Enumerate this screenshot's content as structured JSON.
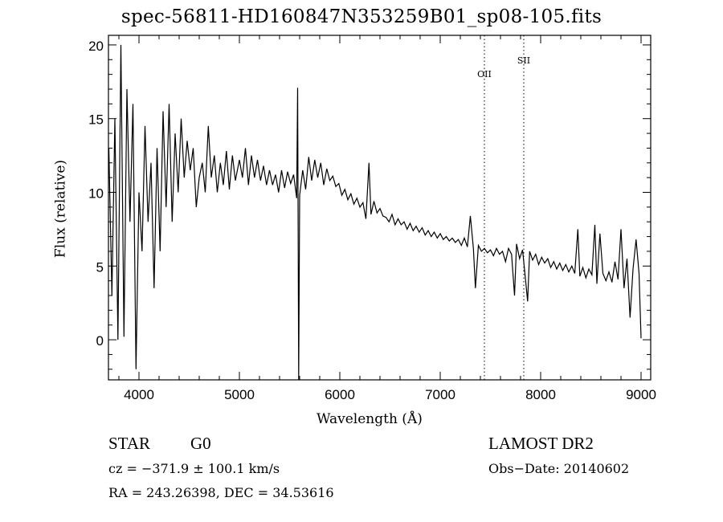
{
  "chart_data": {
    "type": "line",
    "title": "spec-56811-HD160847N353259B01_sp08-105.fits",
    "xlabel": "Wavelength (Å)",
    "ylabel": "Flux (relative)",
    "xlim": [
      3696,
      9096
    ],
    "ylim": [
      -2.72,
      20.65
    ],
    "x_ticks": [
      4000,
      5000,
      6000,
      7000,
      8000,
      9000
    ],
    "x_tick_labels": [
      "4000",
      "5000",
      "6000",
      "7000",
      "8000",
      "9000"
    ],
    "y_ticks": [
      0,
      5,
      10,
      15,
      20
    ],
    "y_tick_labels": [
      "0",
      "5",
      "10",
      "15",
      "20"
    ],
    "grid": false,
    "line_markers": [
      {
        "label": "OII",
        "x": 7440
      },
      {
        "label": "SII",
        "x": 7832
      }
    ],
    "series": [
      {
        "name": "spectrum",
        "x": [
          3700,
          3730,
          3760,
          3790,
          3820,
          3850,
          3880,
          3910,
          3940,
          3970,
          4000,
          4030,
          4060,
          4090,
          4120,
          4150,
          4180,
          4210,
          4240,
          4270,
          4300,
          4330,
          4360,
          4390,
          4420,
          4450,
          4480,
          4510,
          4540,
          4570,
          4600,
          4630,
          4660,
          4690,
          4720,
          4750,
          4780,
          4810,
          4840,
          4870,
          4900,
          4930,
          4960,
          5000,
          5030,
          5060,
          5090,
          5120,
          5150,
          5180,
          5210,
          5240,
          5270,
          5300,
          5330,
          5360,
          5390,
          5420,
          5450,
          5480,
          5510,
          5540,
          5570,
          5580,
          5590,
          5600,
          5630,
          5660,
          5690,
          5720,
          5750,
          5780,
          5810,
          5840,
          5870,
          5900,
          5930,
          5960,
          5990,
          6020,
          6050,
          6080,
          6110,
          6140,
          6170,
          6200,
          6230,
          6260,
          6290,
          6310,
          6340,
          6370,
          6400,
          6430,
          6460,
          6490,
          6520,
          6550,
          6580,
          6610,
          6640,
          6670,
          6700,
          6730,
          6760,
          6790,
          6820,
          6850,
          6880,
          6910,
          6940,
          6970,
          7000,
          7030,
          7060,
          7090,
          7120,
          7150,
          7180,
          7210,
          7240,
          7270,
          7300,
          7330,
          7350,
          7380,
          7410,
          7440,
          7470,
          7500,
          7530,
          7560,
          7590,
          7620,
          7650,
          7680,
          7710,
          7740,
          7760,
          7790,
          7820,
          7850,
          7870,
          7890,
          7920,
          7950,
          7980,
          8010,
          8040,
          8070,
          8100,
          8130,
          8160,
          8190,
          8220,
          8250,
          8280,
          8310,
          8340,
          8370,
          8390,
          8420,
          8450,
          8480,
          8510,
          8540,
          8560,
          8590,
          8620,
          8650,
          8680,
          8710,
          8740,
          8770,
          8800,
          8830,
          8860,
          8890,
          8920,
          8950,
          8980,
          9000
        ],
        "y": [
          13,
          3,
          15,
          0,
          20,
          0.2,
          17,
          8,
          16,
          -2,
          10,
          6,
          14.5,
          8,
          12,
          3.5,
          13,
          6,
          15.5,
          9,
          16,
          8,
          14,
          10,
          15,
          11,
          13.5,
          11.5,
          13,
          9,
          11,
          12,
          10,
          14.5,
          11,
          12.5,
          10,
          12,
          10.5,
          12.8,
          10.2,
          12.5,
          10.8,
          12.2,
          11,
          13,
          10.5,
          12.5,
          11,
          12.2,
          10.8,
          11.8,
          10.5,
          11.5,
          10.5,
          11.2,
          10,
          11.5,
          10.3,
          11.4,
          10.6,
          11.2,
          9.6,
          17.1,
          -2.7,
          9.8,
          11.5,
          10.2,
          12.4,
          10.8,
          12.2,
          11,
          12,
          10.5,
          11.6,
          10.8,
          11.1,
          10.4,
          10.6,
          9.8,
          10.2,
          9.5,
          9.9,
          9.2,
          9.6,
          9,
          9.3,
          8.2,
          12,
          8.5,
          9.4,
          8.6,
          8.9,
          8.4,
          8.3,
          8,
          8.5,
          7.8,
          8.2,
          7.8,
          8,
          7.5,
          7.9,
          7.4,
          7.7,
          7.3,
          7.6,
          7.1,
          7.4,
          7,
          7.3,
          6.9,
          7.2,
          6.8,
          7,
          6.7,
          6.9,
          6.6,
          6.8,
          6.4,
          6.9,
          6.3,
          8.4,
          6.2,
          3.5,
          6.4,
          6,
          6.2,
          5.9,
          6.1,
          5.7,
          6.2,
          5.8,
          6,
          5.3,
          6.2,
          5.8,
          3,
          6.5,
          5.5,
          6.1,
          4,
          2.6,
          6,
          5.4,
          5.8,
          5.1,
          5.6,
          5.2,
          5.5,
          4.9,
          5.3,
          4.8,
          5.2,
          4.7,
          5.1,
          4.6,
          5,
          4.5,
          7.5,
          4.3,
          4.9,
          4.2,
          4.8,
          4.4,
          7.8,
          3.8,
          7.2,
          4.5,
          4,
          4.6,
          3.9,
          5.3,
          4.1,
          7.5,
          3.5,
          5.5,
          1.5,
          4.8,
          6.8,
          4.5,
          0.1
        ]
      }
    ]
  },
  "info": {
    "object_class": "STAR",
    "subclass": "G0",
    "survey": "LAMOST DR2",
    "redshift": "cz = −371.9 ± 100.1 km/s",
    "obs_date": "Obs−Date: 20140602",
    "coords": "RA = 243.26398, DEC =  34.53616"
  }
}
